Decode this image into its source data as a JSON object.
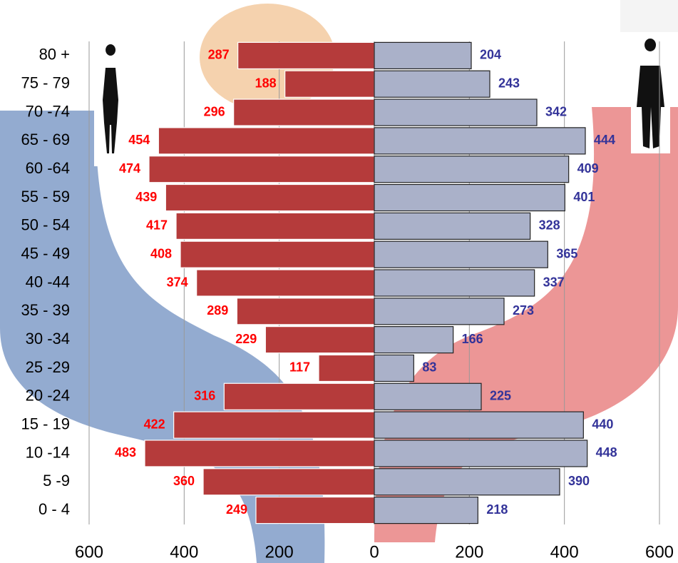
{
  "chart_data": {
    "type": "pyramid",
    "categories": [
      "80 +",
      "75 - 79",
      "70 -74",
      "65 - 69",
      "60 -64",
      "55 - 59",
      "50 - 54",
      "45 - 49",
      "40 -44",
      "35 - 39",
      "30 -34",
      "25 -29",
      "20 -24",
      "15 - 19",
      "10 -14",
      "5 -9",
      "0 - 4"
    ],
    "series": [
      {
        "color": "#b53b3b",
        "label_color": "#ff0000",
        "values": [
          287,
          188,
          296,
          454,
          474,
          439,
          417,
          408,
          374,
          289,
          229,
          117,
          316,
          422,
          483,
          360,
          249
        ]
      },
      {
        "color": "#aab1c9",
        "label_color": "#333399",
        "values": [
          204,
          243,
          342,
          444,
          409,
          401,
          328,
          365,
          337,
          273,
          166,
          83,
          225,
          440,
          448,
          390,
          218
        ]
      }
    ],
    "xlim": [
      -600,
      600
    ],
    "xticks": [
      {
        "value": -600,
        "label": "600"
      },
      {
        "value": -400,
        "label": "400"
      },
      {
        "value": -200,
        "label": "200"
      },
      0,
      200,
      400,
      600
    ],
    "grid": true
  }
}
